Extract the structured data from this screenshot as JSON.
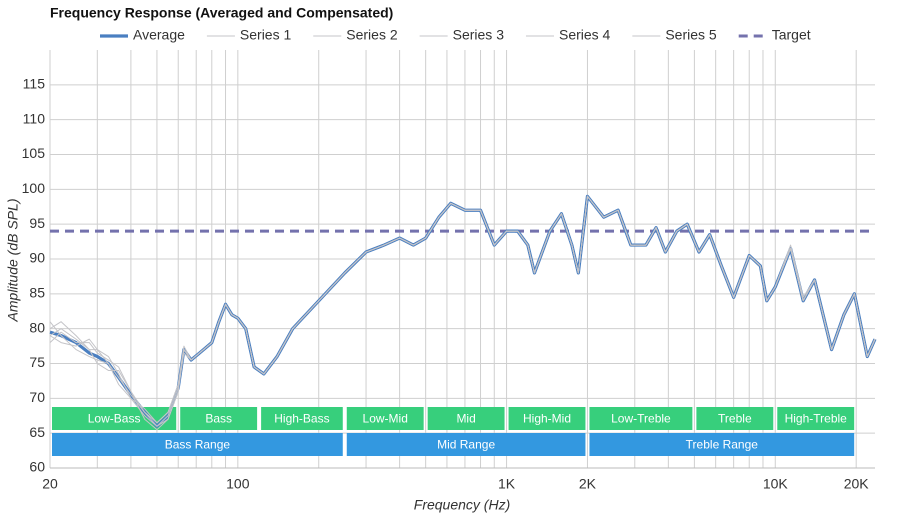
{
  "chart_data": {
    "type": "line",
    "title": "Frequency Response (Averaged and Compensated)",
    "x_label": "Frequency (Hz)",
    "y_label": "Amplitude (dB SPL)",
    "xscale": "log",
    "xlim": [
      20,
      23500
    ],
    "ylim": [
      60,
      120
    ],
    "yticks": [
      60,
      65,
      70,
      75,
      80,
      85,
      90,
      95,
      100,
      105,
      110,
      115
    ],
    "xticks": [
      20,
      100,
      {
        "value": 1000,
        "label": "1K"
      },
      {
        "value": 2000,
        "label": "2K"
      },
      {
        "value": 10000,
        "label": "10K"
      },
      {
        "value": 20000,
        "label": "20K"
      }
    ],
    "xgrid_minor": [
      30,
      40,
      50,
      60,
      70,
      80,
      90,
      200,
      300,
      400,
      500,
      600,
      700,
      800,
      900,
      3000,
      4000,
      5000,
      6000,
      7000,
      8000,
      9000
    ],
    "grid": true,
    "x": [
      20,
      22,
      25,
      28,
      30,
      33,
      36,
      40,
      45,
      50,
      55,
      60,
      63,
      67,
      72,
      80,
      85,
      90,
      95,
      100,
      107,
      115,
      125,
      140,
      160,
      200,
      250,
      300,
      350,
      400,
      450,
      500,
      560,
      620,
      700,
      800,
      900,
      1000,
      1100,
      1200,
      1270,
      1450,
      1600,
      1750,
      1850,
      2000,
      2300,
      2600,
      2900,
      3300,
      3600,
      3900,
      4300,
      4700,
      5200,
      5700,
      6300,
      7000,
      8000,
      8800,
      9300,
      10000,
      11400,
      12700,
      14000,
      16200,
      18000,
      19700,
      22000,
      23500
    ],
    "series": [
      {
        "name": "Average",
        "color": "#4a7fc1",
        "width": 3.2,
        "values": [
          79.5,
          79,
          78,
          76.5,
          76,
          75,
          73,
          70.5,
          68,
          66,
          67.5,
          71.5,
          77,
          75.5,
          76.5,
          78,
          81,
          83.5,
          82,
          81.5,
          80,
          74.5,
          73.5,
          76,
          80,
          84,
          88,
          91,
          92,
          93,
          92,
          93,
          96,
          98,
          97,
          97,
          92,
          94,
          94,
          92,
          88,
          94,
          96.5,
          92,
          88,
          99,
          96,
          97,
          92,
          92,
          94.5,
          91,
          94,
          95,
          91,
          93.5,
          89,
          84.5,
          90.5,
          89,
          84,
          86,
          91.5,
          84,
          87,
          77,
          82,
          85,
          76,
          78.5
        ]
      },
      {
        "name": "Series 1",
        "color": "#c4c4c8",
        "width": 1,
        "values": [
          80,
          81,
          79,
          77,
          75,
          74,
          74,
          71,
          67,
          65.5,
          67,
          71,
          77,
          75.5,
          76.5,
          78,
          81,
          83.5,
          82,
          81.5,
          80,
          74.5,
          73.5,
          76,
          80,
          84,
          88,
          91,
          92,
          93,
          92,
          93,
          96,
          98,
          97,
          97,
          92,
          94,
          94,
          92,
          88,
          94,
          96.5,
          92,
          88,
          99,
          96,
          97,
          92,
          92,
          94.5,
          91,
          94,
          95,
          91,
          93.5,
          89,
          84.5,
          90.5,
          89,
          84,
          86,
          91.5,
          84,
          87,
          77,
          82,
          85,
          76,
          78.5
        ]
      },
      {
        "name": "Series 2",
        "color": "#c4c4c8",
        "width": 1,
        "values": [
          79,
          80,
          78.5,
          77,
          77,
          76,
          73.5,
          70,
          68.5,
          66.5,
          68,
          72,
          77.5,
          75.5,
          76.5,
          78,
          81,
          83.5,
          82,
          81.5,
          80,
          74.5,
          73.5,
          76,
          80,
          84,
          88,
          91,
          92,
          93,
          92,
          93,
          96,
          98,
          97,
          97,
          92,
          94,
          94,
          92,
          88,
          94,
          96.5,
          92,
          88,
          99,
          96,
          97,
          92,
          92,
          94.5,
          91,
          94,
          95,
          91,
          93.5,
          89,
          84.5,
          90.5,
          89,
          84,
          86,
          91.5,
          84,
          87,
          77,
          82,
          85,
          76,
          78.5
        ]
      },
      {
        "name": "Series 3",
        "color": "#c4c4c8",
        "width": 1,
        "values": [
          78,
          79.5,
          78,
          78,
          76.5,
          75.5,
          74.5,
          71,
          68,
          66,
          67.5,
          71.5,
          76.5,
          75.5,
          76.5,
          78,
          81,
          83.5,
          82,
          81.5,
          80,
          74.5,
          73.5,
          76,
          80,
          84,
          88,
          91,
          92,
          93,
          92,
          93,
          96,
          98,
          97,
          97,
          92,
          94,
          94,
          92,
          88,
          94,
          96.5,
          92,
          88,
          99,
          96,
          97,
          92,
          92,
          94.5,
          91,
          94,
          95,
          91,
          93.5,
          89,
          84.5,
          90.5,
          89,
          84,
          86,
          92,
          84.5,
          87,
          77,
          82,
          85,
          76,
          78.5
        ]
      },
      {
        "name": "Series 4",
        "color": "#c4c4c8",
        "width": 1,
        "values": [
          81,
          79,
          77,
          76,
          75.5,
          75,
          72,
          70,
          67.5,
          66,
          67,
          71,
          77,
          75.5,
          76.5,
          78,
          81,
          83.5,
          82,
          81.5,
          80,
          74.5,
          73.5,
          76,
          80,
          84,
          88,
          91,
          92,
          93,
          92,
          93,
          96,
          98,
          97,
          97,
          92,
          94,
          94,
          92,
          88,
          94,
          96.5,
          92,
          88,
          99,
          96,
          97,
          92,
          92,
          94.5,
          91,
          94,
          95,
          91,
          93.5,
          89,
          84.5,
          90.5,
          89,
          84,
          86,
          91.5,
          84,
          87,
          77,
          82,
          85,
          76,
          78.5
        ]
      },
      {
        "name": "Series 5",
        "color": "#c4c4c8",
        "width": 1,
        "values": [
          79,
          78,
          77.5,
          78.5,
          77,
          75,
          73,
          70.5,
          68,
          66.5,
          68,
          72,
          77,
          75.5,
          76.5,
          78,
          81,
          83.5,
          82,
          81.5,
          80,
          74.5,
          73.5,
          76,
          80,
          84,
          88,
          91,
          92,
          93,
          92,
          93,
          96,
          98,
          97,
          97,
          92,
          94,
          94,
          92,
          88,
          94,
          96.5,
          92,
          88,
          99,
          96,
          97,
          92,
          92,
          94.5,
          91,
          94,
          95,
          91,
          93.5,
          89,
          84.5,
          90.5,
          89,
          84,
          86,
          91.5,
          84,
          87,
          77,
          82,
          85,
          76,
          78.5
        ]
      }
    ],
    "target": {
      "name": "Target",
      "value": 94,
      "color": "#7472ad"
    },
    "sub_bands": {
      "color": "#37cf7c",
      "items": [
        {
          "label": "Low-Bass",
          "range": [
            20,
            60
          ]
        },
        {
          "label": "Bass",
          "range": [
            60,
            120
          ]
        },
        {
          "label": "High-Bass",
          "range": [
            120,
            250
          ]
        },
        {
          "label": "Low-Mid",
          "range": [
            250,
            500
          ]
        },
        {
          "label": "Mid",
          "range": [
            500,
            1000
          ]
        },
        {
          "label": "High-Mid",
          "range": [
            1000,
            2000
          ]
        },
        {
          "label": "Low-Treble",
          "range": [
            2000,
            5000
          ]
        },
        {
          "label": "Treble",
          "range": [
            5000,
            10000
          ]
        },
        {
          "label": "High-Treble",
          "range": [
            10000,
            20000
          ]
        }
      ]
    },
    "range_bands": {
      "color": "#3398e0",
      "items": [
        {
          "label": "Bass Range",
          "range": [
            20,
            250
          ]
        },
        {
          "label": "Mid Range",
          "range": [
            250,
            2000
          ]
        },
        {
          "label": "Treble Range",
          "range": [
            2000,
            20000
          ]
        }
      ]
    }
  }
}
